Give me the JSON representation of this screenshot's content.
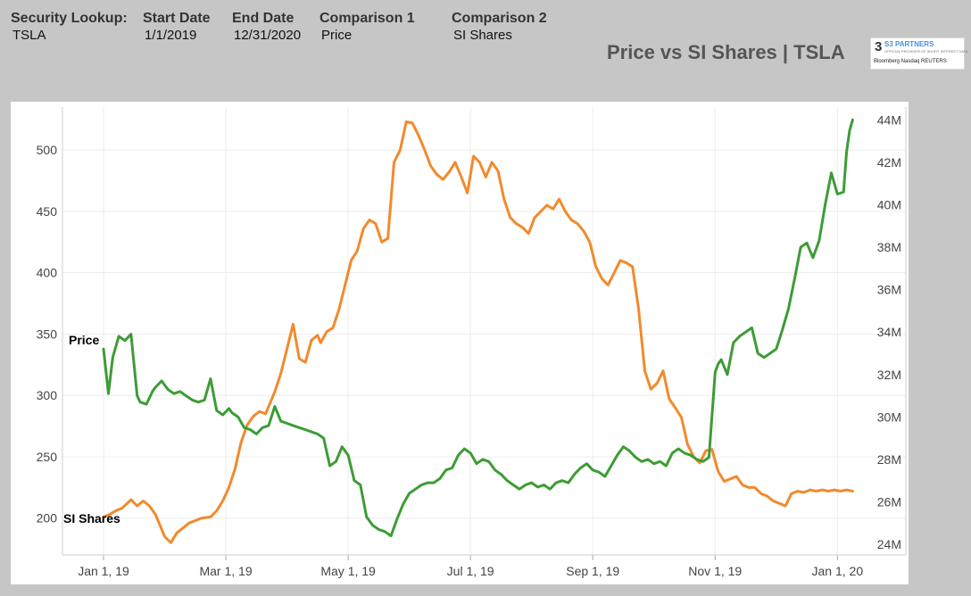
{
  "header": {
    "security_label": "Security Lookup:",
    "security_value": "TSLA",
    "start_label": "Start Date",
    "start_value": "1/1/2019",
    "end_label": "End Date",
    "end_value": "12/31/2020",
    "comp1_label": "Comparison 1",
    "comp1_value": "Price",
    "comp2_label": "Comparison 2",
    "comp2_value": "SI Shares",
    "title": "Price vs SI Shares | TSLA"
  },
  "logo": {
    "number": "3",
    "brand": "S3 PARTNERS",
    "tagline": "OFFICIAL PROVIDER OF SHORT INTEREST DATA",
    "partners": "Bloomberg  Nasdaq  REUTERS"
  },
  "colors": {
    "price": "#f28a2c",
    "si_shares": "#3d9c35",
    "grid": "#ececec"
  },
  "chart_data": {
    "type": "line",
    "x_ticks": [
      "Jan 1, 19",
      "Mar 1, 19",
      "May 1, 19",
      "Jul 1, 19",
      "Sep 1, 19",
      "Nov 1, 19",
      "Jan 1, 20"
    ],
    "x_tick_months": [
      0,
      2,
      4,
      6,
      8,
      10,
      12
    ],
    "x_range": [
      0,
      12.55
    ],
    "left_axis": {
      "ticks": [
        200,
        250,
        300,
        350,
        400,
        450,
        500
      ],
      "range": [
        170,
        535
      ]
    },
    "right_axis": {
      "ticks": [
        "24M",
        "26M",
        "28M",
        "30M",
        "32M",
        "34M",
        "36M",
        "38M",
        "40M",
        "42M",
        "44M"
      ],
      "tick_values": [
        24,
        26,
        28,
        30,
        32,
        34,
        36,
        38,
        40,
        42,
        44
      ],
      "range": [
        23.5,
        44.6
      ]
    },
    "grid": true,
    "series": [
      {
        "name": "Price",
        "axis": "left",
        "color": "#f28a2c",
        "x": [
          0.0,
          0.1,
          0.2,
          0.3,
          0.45,
          0.55,
          0.65,
          0.75,
          0.85,
          1.0,
          1.1,
          1.2,
          1.3,
          1.4,
          1.5,
          1.6,
          1.75,
          1.85,
          1.95,
          2.05,
          2.15,
          2.25,
          2.35,
          2.45,
          2.55,
          2.65,
          2.8,
          2.9,
          3.0,
          3.1,
          3.2,
          3.3,
          3.4,
          3.5,
          3.55,
          3.65,
          3.75,
          3.85,
          3.95,
          4.05,
          4.15,
          4.25,
          4.35,
          4.45,
          4.55,
          4.65,
          4.75,
          4.85,
          4.95,
          5.05,
          5.15,
          5.25,
          5.35,
          5.45,
          5.55,
          5.65,
          5.75,
          5.85,
          5.95,
          6.05,
          6.15,
          6.25,
          6.35,
          6.45,
          6.55,
          6.65,
          6.75,
          6.85,
          6.95,
          7.05,
          7.15,
          7.25,
          7.35,
          7.45,
          7.55,
          7.65,
          7.75,
          7.85,
          7.95,
          8.05,
          8.15,
          8.25,
          8.35,
          8.45,
          8.55,
          8.65,
          8.75,
          8.85,
          8.95,
          9.05,
          9.15,
          9.25,
          9.35,
          9.45,
          9.55,
          9.65,
          9.75,
          9.85,
          9.95,
          10.05,
          10.15,
          10.25,
          10.35,
          10.45,
          10.55,
          10.65,
          10.75,
          10.85,
          10.95,
          11.05,
          11.15,
          11.25,
          11.35,
          11.45,
          11.55,
          11.65,
          11.75,
          11.85,
          11.95,
          12.05,
          12.15,
          12.25
        ],
        "values": [
          201,
          203,
          206,
          208,
          215,
          210,
          214,
          210,
          203,
          185,
          180,
          188,
          192,
          196,
          198,
          200,
          201,
          206,
          214,
          225,
          240,
          262,
          276,
          283,
          287,
          285,
          303,
          318,
          338,
          358,
          330,
          327,
          345,
          349,
          343,
          352,
          355,
          370,
          390,
          410,
          418,
          436,
          443,
          440,
          425,
          428,
          490,
          500,
          523,
          522,
          512,
          500,
          487,
          480,
          476,
          482,
          490,
          478,
          465,
          495,
          490,
          478,
          490,
          483,
          460,
          445,
          440,
          437,
          432,
          445,
          450,
          455,
          452,
          460,
          450,
          443,
          440,
          434,
          425,
          405,
          395,
          390,
          400,
          410,
          408,
          405,
          370,
          320,
          305,
          310,
          320,
          297,
          290,
          282,
          260,
          250,
          245,
          255,
          256,
          238,
          230,
          232,
          234,
          227,
          225,
          225,
          220,
          218,
          214,
          212,
          210,
          220,
          222,
          221,
          223,
          222,
          223,
          222,
          223,
          222,
          223,
          222
        ]
      },
      {
        "name": "SI Shares",
        "axis": "right",
        "color": "#3d9c35",
        "x": [
          0.0,
          0.08,
          0.15,
          0.25,
          0.35,
          0.45,
          0.55,
          0.6,
          0.7,
          0.8,
          0.85,
          0.95,
          1.05,
          1.15,
          1.25,
          1.35,
          1.45,
          1.55,
          1.65,
          1.75,
          1.85,
          1.95,
          2.05,
          2.1,
          2.2,
          2.3,
          2.4,
          2.5,
          2.6,
          2.7,
          2.8,
          2.9,
          3.0,
          3.1,
          3.2,
          3.3,
          3.4,
          3.5,
          3.6,
          3.7,
          3.8,
          3.9,
          4.0,
          4.1,
          4.2,
          4.3,
          4.4,
          4.5,
          4.6,
          4.7,
          4.8,
          4.9,
          5.0,
          5.1,
          5.2,
          5.3,
          5.4,
          5.5,
          5.6,
          5.7,
          5.8,
          5.9,
          6.0,
          6.1,
          6.2,
          6.3,
          6.4,
          6.5,
          6.6,
          6.7,
          6.8,
          6.9,
          7.0,
          7.1,
          7.2,
          7.3,
          7.4,
          7.5,
          7.6,
          7.7,
          7.8,
          7.9,
          8.0,
          8.1,
          8.2,
          8.3,
          8.4,
          8.5,
          8.6,
          8.7,
          8.8,
          8.9,
          9.0,
          9.1,
          9.2,
          9.3,
          9.4,
          9.5,
          9.6,
          9.7,
          9.8,
          9.9,
          10.0,
          10.05,
          10.1,
          10.2,
          10.3,
          10.4,
          10.5,
          10.6,
          10.7,
          10.8,
          10.9,
          11.0,
          11.1,
          11.2,
          11.3,
          11.4,
          11.5,
          11.6,
          11.7,
          11.8,
          11.9,
          12.0,
          12.1,
          12.15,
          12.2,
          12.25
        ],
        "values": [
          33.2,
          31.1,
          32.8,
          33.8,
          33.6,
          33.9,
          31.0,
          30.7,
          30.6,
          31.2,
          31.4,
          31.7,
          31.3,
          31.1,
          31.2,
          31.0,
          30.8,
          30.7,
          30.8,
          31.8,
          30.3,
          30.1,
          30.4,
          30.2,
          30.0,
          29.5,
          29.4,
          29.2,
          29.5,
          29.6,
          30.5,
          29.8,
          29.7,
          29.6,
          29.5,
          29.4,
          29.3,
          29.2,
          29.0,
          27.7,
          27.9,
          28.6,
          28.2,
          27.0,
          26.8,
          25.3,
          24.9,
          24.7,
          24.6,
          24.4,
          25.2,
          25.9,
          26.4,
          26.6,
          26.8,
          26.9,
          26.9,
          27.1,
          27.5,
          27.6,
          28.2,
          28.5,
          28.3,
          27.8,
          28.0,
          27.9,
          27.5,
          27.3,
          27.0,
          26.8,
          26.6,
          26.8,
          26.9,
          26.7,
          26.8,
          26.6,
          26.9,
          27.0,
          26.9,
          27.3,
          27.6,
          27.8,
          27.5,
          27.4,
          27.2,
          27.7,
          28.2,
          28.6,
          28.4,
          28.1,
          27.9,
          28.0,
          27.8,
          27.9,
          27.7,
          28.3,
          28.5,
          28.3,
          28.2,
          28.0,
          27.9,
          28.1,
          32.1,
          32.5,
          32.7,
          32.0,
          33.5,
          33.8,
          34.0,
          34.2,
          33.0,
          32.8,
          33.0,
          33.2,
          34.1,
          35.1,
          36.5,
          38.0,
          38.2,
          37.5,
          38.3,
          40.0,
          41.5,
          40.5,
          40.6,
          42.5,
          43.5,
          44.0
        ]
      }
    ]
  }
}
